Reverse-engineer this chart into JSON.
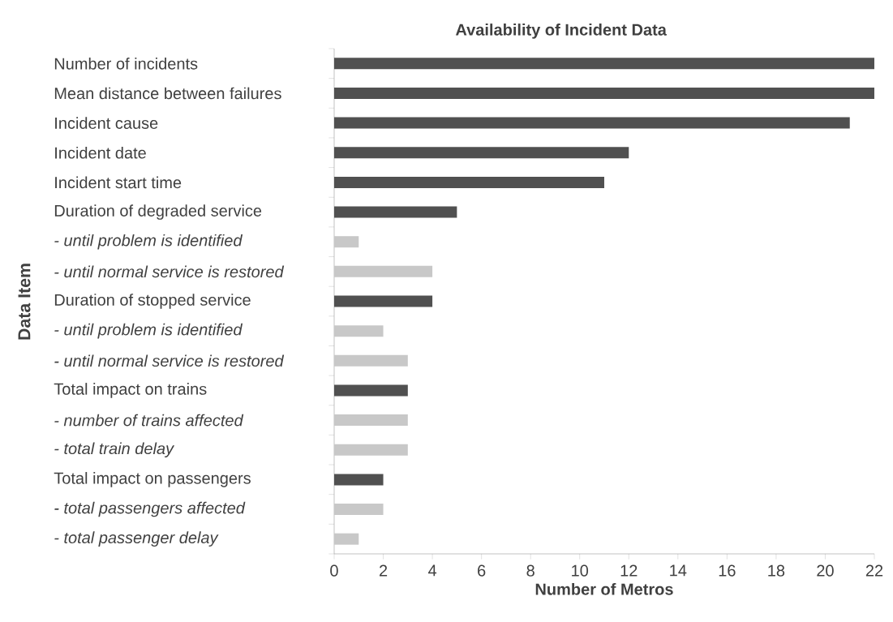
{
  "chart_data": {
    "type": "bar",
    "orientation": "horizontal",
    "title": "Availability of Incident Data",
    "xlabel": "Number of Metros",
    "ylabel": "Data Item",
    "categories": [
      "Number of incidents",
      "Mean distance between failures",
      "Incident cause",
      "Incident date",
      "Incident start time",
      "Duration of degraded service",
      "- until problem is identified",
      "- until normal service is restored",
      "Duration of stopped service",
      "- until problem is identified",
      "- until normal service is restored",
      "Total impact on trains",
      "- number of trains affected",
      "- total train delay",
      "Total impact on passengers",
      "- total passengers affected",
      "- total passenger delay"
    ],
    "values": [
      22,
      22,
      21,
      12,
      11,
      5,
      1,
      4,
      4,
      2,
      3,
      3,
      3,
      3,
      2,
      2,
      1
    ],
    "colors": [
      "#505050",
      "#505050",
      "#505050",
      "#505050",
      "#505050",
      "#505050",
      "#c8c8c8",
      "#c8c8c8",
      "#505050",
      "#c8c8c8",
      "#c8c8c8",
      "#505050",
      "#c8c8c8",
      "#c8c8c8",
      "#505050",
      "#c8c8c8",
      "#c8c8c8"
    ],
    "xlim": [
      0,
      22
    ],
    "xticks": [
      0,
      2,
      4,
      6,
      8,
      10,
      12,
      14,
      16,
      18,
      20,
      22
    ]
  }
}
